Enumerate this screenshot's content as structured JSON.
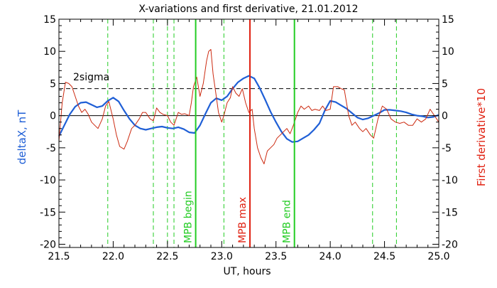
{
  "chart_data": {
    "type": "line",
    "title": "X-variations and first derivative, 21.01.2012",
    "xlabel": "UT, hours",
    "ylabel_left": "deltaX, nT",
    "ylabel_right": "First derivative*10",
    "xlim": [
      21.5,
      25.0
    ],
    "ylim": [
      -20.5,
      15
    ],
    "x_ticks": [
      "21.5",
      "22.0",
      "22.5",
      "23.0",
      "23.5",
      "24.0",
      "24.5",
      "25.0"
    ],
    "x_tick_values": [
      21.5,
      22.0,
      22.5,
      23.0,
      23.5,
      24.0,
      24.5,
      25.0
    ],
    "y_ticks": [
      "15",
      "10",
      "5",
      "0",
      "-5",
      "-10",
      "-15",
      "-20"
    ],
    "y_tick_values": [
      15,
      10,
      5,
      0,
      -5,
      -10,
      -15,
      -20
    ],
    "threshold": {
      "label": "2sigma",
      "value": 4.2
    },
    "zero_line": 0,
    "colors": {
      "deltaX": "#1f5fd6",
      "derivative": "#cc2a10",
      "green": "#22cc22",
      "red": "#e02010",
      "axis": "#000000"
    },
    "dashed_green_lines": [
      21.95,
      22.37,
      22.5,
      22.56,
      23.02,
      24.39,
      24.61
    ],
    "markers": [
      {
        "label": "MPB begin",
        "x": 22.76,
        "color": "#22cc22"
      },
      {
        "label": "MPB max",
        "x": 23.26,
        "color": "#e02010"
      },
      {
        "label": "MPB end",
        "x": 23.67,
        "color": "#22cc22"
      }
    ],
    "series": [
      {
        "key": "deltaX",
        "x": [
          21.5,
          21.55,
          21.6,
          21.65,
          21.7,
          21.75,
          21.8,
          21.85,
          21.9,
          21.95,
          22.0,
          22.05,
          22.1,
          22.15,
          22.2,
          22.25,
          22.3,
          22.35,
          22.4,
          22.45,
          22.5,
          22.55,
          22.6,
          22.65,
          22.7,
          22.75,
          22.8,
          22.85,
          22.9,
          22.95,
          23.0,
          23.05,
          23.1,
          23.15,
          23.2,
          23.25,
          23.3,
          23.35,
          23.4,
          23.45,
          23.5,
          23.55,
          23.6,
          23.65,
          23.7,
          23.75,
          23.8,
          23.85,
          23.9,
          23.95,
          24.0,
          24.05,
          24.1,
          24.15,
          24.2,
          24.25,
          24.3,
          24.35,
          24.4,
          24.45,
          24.5,
          24.55,
          24.6,
          24.65,
          24.7,
          24.75,
          24.8,
          24.85,
          24.9,
          24.95,
          25.0
        ],
        "values": [
          -3.2,
          -1.5,
          0.2,
          1.4,
          2.0,
          2.1,
          1.7,
          1.3,
          1.5,
          2.3,
          2.8,
          2.2,
          0.8,
          -0.5,
          -1.5,
          -2.0,
          -2.2,
          -2.0,
          -1.8,
          -1.7,
          -1.9,
          -2.0,
          -1.8,
          -2.1,
          -2.6,
          -2.7,
          -1.5,
          0.3,
          2.0,
          2.7,
          2.4,
          3.0,
          4.2,
          5.2,
          5.8,
          6.2,
          5.8,
          4.3,
          2.5,
          0.6,
          -1.0,
          -2.5,
          -3.6,
          -4.1,
          -4.0,
          -3.5,
          -3.0,
          -2.2,
          -1.2,
          0.8,
          2.3,
          2.1,
          1.6,
          1.1,
          0.4,
          -0.3,
          -0.6,
          -0.4,
          0.0,
          0.4,
          0.9,
          0.9,
          0.8,
          0.7,
          0.5,
          0.2,
          0.0,
          -0.1,
          -0.3,
          -0.2,
          0.1
        ]
      },
      {
        "key": "derivative",
        "x": [
          21.5,
          21.53,
          21.56,
          21.59,
          21.62,
          21.65,
          21.68,
          21.71,
          21.74,
          21.77,
          21.8,
          21.83,
          21.86,
          21.9,
          21.93,
          21.96,
          22.0,
          22.03,
          22.06,
          22.1,
          22.13,
          22.17,
          22.2,
          22.24,
          22.27,
          22.3,
          22.34,
          22.37,
          22.4,
          22.43,
          22.46,
          22.5,
          22.53,
          22.56,
          22.6,
          22.63,
          22.66,
          22.7,
          22.72,
          22.74,
          22.77,
          22.8,
          22.83,
          22.86,
          22.88,
          22.9,
          22.92,
          22.95,
          22.97,
          23.0,
          23.02,
          23.05,
          23.08,
          23.1,
          23.13,
          23.16,
          23.19,
          23.22,
          23.25,
          23.28,
          23.3,
          23.33,
          23.36,
          23.39,
          23.42,
          23.45,
          23.48,
          23.51,
          23.54,
          23.57,
          23.6,
          23.63,
          23.66,
          23.7,
          23.73,
          23.76,
          23.8,
          23.83,
          23.86,
          23.9,
          23.93,
          23.96,
          24.0,
          24.03,
          24.07,
          24.1,
          24.13,
          24.17,
          24.2,
          24.23,
          24.27,
          24.3,
          24.33,
          24.37,
          24.4,
          24.44,
          24.48,
          24.52,
          24.56,
          24.6,
          24.64,
          24.68,
          24.72,
          24.76,
          24.8,
          24.84,
          24.88,
          24.92,
          24.96,
          25.0
        ],
        "values": [
          -4.0,
          2.0,
          5.2,
          5.0,
          4.5,
          3.0,
          1.5,
          0.5,
          1.0,
          0.2,
          -1.0,
          -1.5,
          -2.0,
          -0.5,
          1.5,
          2.2,
          -0.5,
          -3.0,
          -4.8,
          -5.2,
          -4.0,
          -2.0,
          -1.5,
          -0.5,
          0.5,
          0.5,
          -0.5,
          -0.8,
          1.2,
          0.5,
          0.2,
          0.0,
          -1.0,
          -1.5,
          0.5,
          0.2,
          0.3,
          0.0,
          2.0,
          4.5,
          6.0,
          3.0,
          5.0,
          8.5,
          10.0,
          10.3,
          6.5,
          3.0,
          0.5,
          -1.0,
          0.0,
          2.0,
          2.8,
          4.5,
          3.5,
          3.0,
          4.2,
          2.0,
          0.5,
          1.0,
          -2.0,
          -5.0,
          -6.5,
          -7.5,
          -5.5,
          -5.0,
          -4.5,
          -3.5,
          -3.0,
          -2.5,
          -2.0,
          -2.8,
          -1.5,
          0.5,
          1.5,
          1.0,
          1.5,
          0.8,
          1.0,
          0.8,
          1.5,
          0.8,
          1.0,
          4.5,
          4.5,
          4.2,
          4.0,
          0.0,
          -1.5,
          -1.0,
          -2.0,
          -2.5,
          -2.0,
          -3.0,
          -3.5,
          -0.5,
          1.5,
          1.0,
          -0.5,
          -1.0,
          -1.2,
          -1.0,
          -1.5,
          -1.5,
          -0.5,
          -1.0,
          -0.5,
          1.0,
          0.0,
          -1.0
        ]
      }
    ]
  }
}
